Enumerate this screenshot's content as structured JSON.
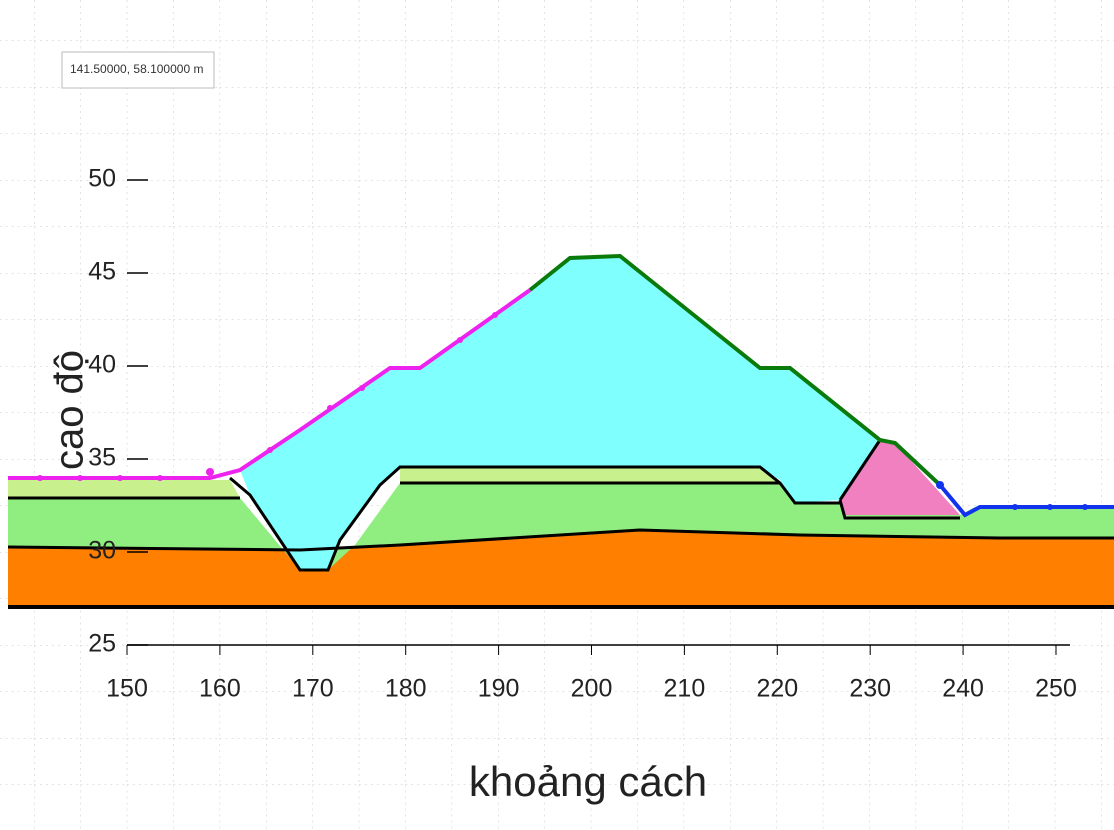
{
  "tooltip": "141.50000, 58.100000 m",
  "axes": {
    "x_label": "khoảng cách",
    "y_label": "cao độ",
    "xticks": [
      150,
      160,
      170,
      180,
      190,
      200,
      210,
      220,
      230,
      240,
      250
    ],
    "yticks": [
      25,
      30,
      35,
      40,
      45,
      50
    ]
  }
}
